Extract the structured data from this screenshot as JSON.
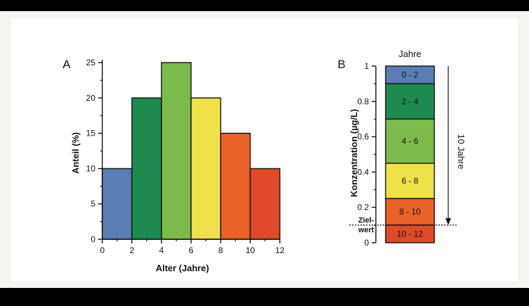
{
  "chart_data": [
    {
      "type": "bar",
      "panel_label": "A",
      "xlabel": "Alter (Jahre)",
      "ylabel": "Anteil (%)",
      "x_ticks": [
        "0",
        "2",
        "4",
        "6",
        "8",
        "10",
        "12"
      ],
      "y_ticks": [
        "0",
        "5",
        "10",
        "15",
        "20",
        "25"
      ],
      "xlim": [
        0,
        12
      ],
      "ylim": [
        0,
        25
      ],
      "bins": [
        {
          "from": 0,
          "to": 2,
          "value": 10,
          "color": "#5b7db5"
        },
        {
          "from": 2,
          "to": 4,
          "value": 20,
          "color": "#1e8a4f"
        },
        {
          "from": 4,
          "to": 6,
          "value": 25,
          "color": "#7dba4c"
        },
        {
          "from": 6,
          "to": 8,
          "value": 20,
          "color": "#efe14a"
        },
        {
          "from": 8,
          "to": 10,
          "value": 15,
          "color": "#e8622a"
        },
        {
          "from": 10,
          "to": 12,
          "value": 10,
          "color": "#de4a2a"
        }
      ],
      "legend": "none",
      "grid": false
    },
    {
      "type": "bar",
      "subtype": "stacked-column",
      "panel_label": "B",
      "ylabel": "Konzentration (µg/L)",
      "column_title": "Jahre",
      "y_ticks": [
        "0",
        "0.2",
        "0.4",
        "0.6",
        "0.8",
        "1"
      ],
      "ylim": [
        0,
        1
      ],
      "segments": [
        {
          "label": "0 - 2",
          "from": 0.9,
          "to": 1.0,
          "color": "#5b7db5"
        },
        {
          "label": "2 - 4",
          "from": 0.7,
          "to": 0.9,
          "color": "#1e8a4f"
        },
        {
          "label": "4 - 6",
          "from": 0.45,
          "to": 0.7,
          "color": "#7dba4c"
        },
        {
          "label": "6 - 8",
          "from": 0.25,
          "to": 0.45,
          "color": "#efe14a"
        },
        {
          "label": "8 - 10",
          "from": 0.1,
          "to": 0.25,
          "color": "#e8622a"
        },
        {
          "label": "10 - 12",
          "from": 0.0,
          "to": 0.1,
          "color": "#de4a2a"
        }
      ],
      "annotations": {
        "target_line": {
          "value": 0.1,
          "label_top": "Ziel-",
          "label_bottom": "wert"
        },
        "arrow": {
          "from": 1.0,
          "to": 0.1,
          "label": "10 Jahre"
        }
      },
      "legend": "none",
      "grid": false
    }
  ]
}
